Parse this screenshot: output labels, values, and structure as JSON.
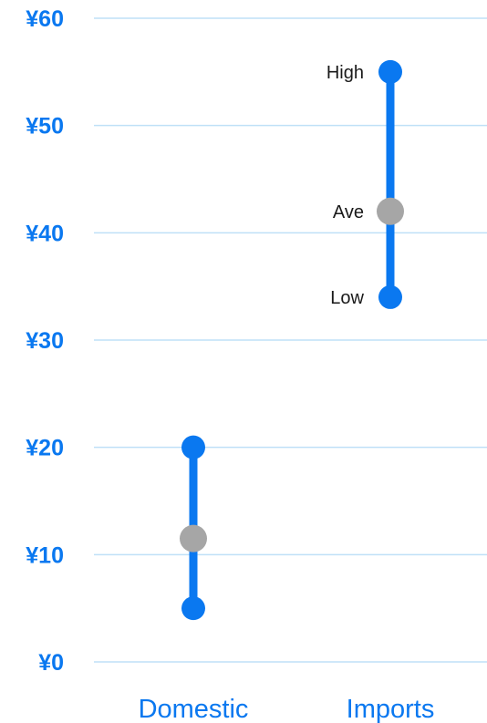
{
  "chart_data": {
    "type": "range",
    "title": "",
    "xlabel": "",
    "ylabel": "",
    "categories": [
      "Domestic",
      "Imports"
    ],
    "ylim": [
      0,
      60
    ],
    "y_ticks": [
      "¥0",
      "¥10",
      "¥20",
      "¥30",
      "¥40",
      "¥50",
      "¥60"
    ],
    "grid": true,
    "series": [
      {
        "name": "Low",
        "values": [
          5,
          34
        ]
      },
      {
        "name": "Ave",
        "values": [
          11.5,
          42
        ]
      },
      {
        "name": "High",
        "values": [
          20,
          55
        ]
      }
    ],
    "point_labels": {
      "category": "Imports",
      "high": "High",
      "ave": "Ave",
      "low": "Low"
    },
    "colors": {
      "range": "#0a78f0",
      "average": "#a6a6a6",
      "grid": "#bfe0f7",
      "axis_text": "#0a78f0",
      "label_text": "#1a1a1a"
    }
  }
}
